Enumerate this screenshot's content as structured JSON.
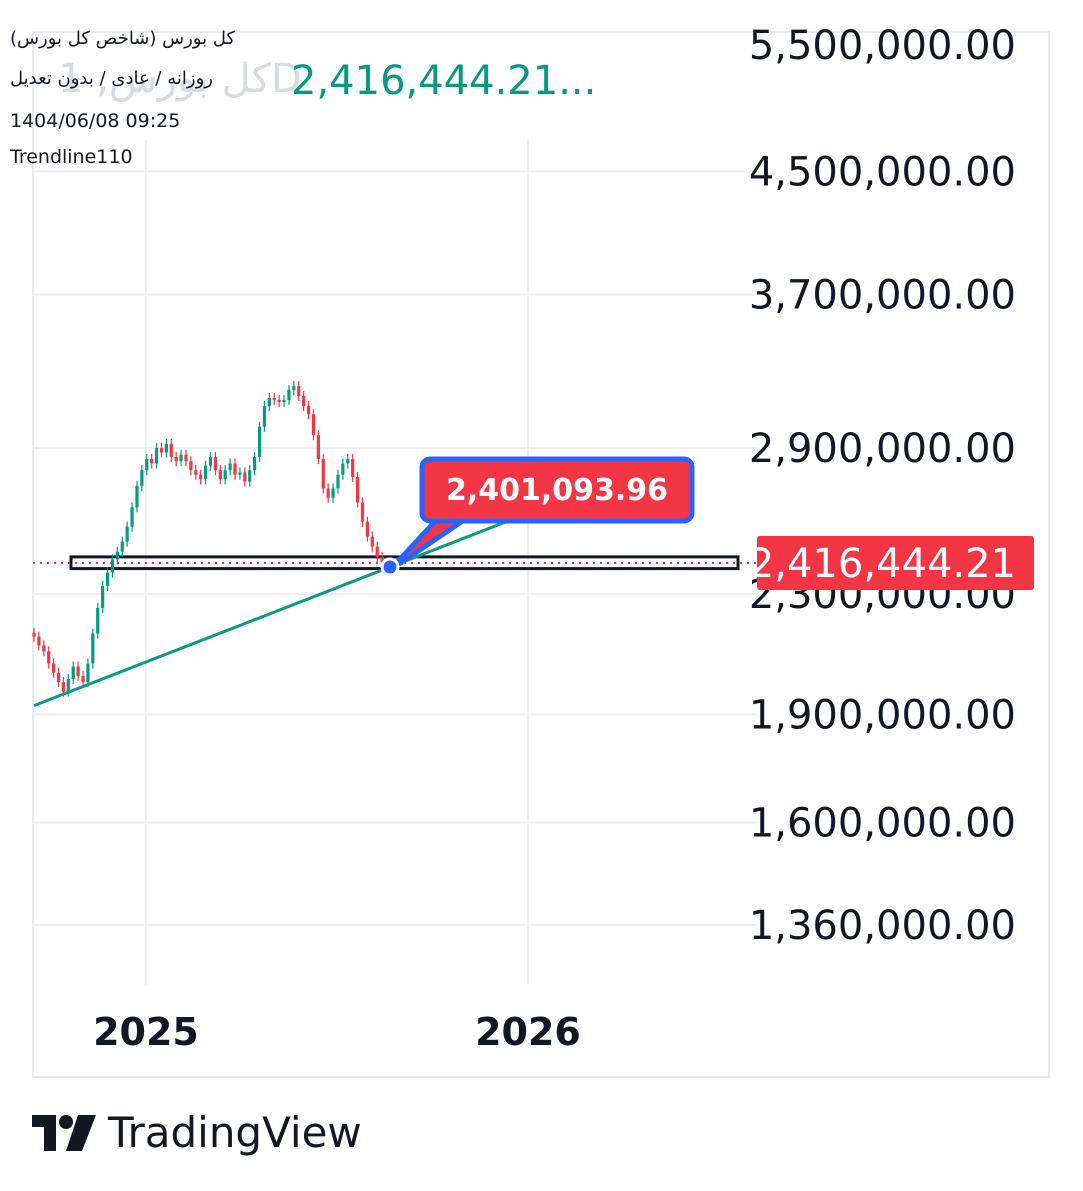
{
  "header": {
    "symbol": "کل بورس (شاخص کل بورس)",
    "interval": "روزانه / عادی / بدون تعدیل",
    "last_price": "2,416,444.21...",
    "datetime": "1404/06/08 09:25",
    "indicator": "Trendline110",
    "ghost_text": "کل بورس, 1D"
  },
  "brand": {
    "name": "TradingView",
    "logo_icon": "tradingview-logo-icon"
  },
  "colors": {
    "up": "#089981",
    "down": "#f23645",
    "trend": "#0f9a80",
    "callout_fill": "#f23645",
    "callout_border": "#2962ff",
    "grid": "#eef0f3"
  },
  "chart_data": {
    "type": "candlestick",
    "title": "",
    "xlabel": "",
    "ylabel": "",
    "y_scale": "log",
    "grid": true,
    "x_ticks": [
      "2025",
      "2026"
    ],
    "y_ticks": [
      5500000,
      4500000,
      3700000,
      2900000,
      2300000,
      1900000,
      1600000,
      1360000
    ],
    "y_tick_labels": [
      "5,500,000.00",
      "4,500,000.00",
      "3,700,000.00",
      "2,900,000.00",
      "2,300,000.00",
      "1,900,000.00",
      "1,600,000.00",
      "1,360,000.00"
    ],
    "last_price_value": 2416444.21,
    "last_price_label": "2,416,444.21",
    "callout_label": "2,401,093.96",
    "callout_value": 2401093.96,
    "series": [
      {
        "name": "",
        "values": [
          2150000,
          2120000,
          2100000,
          2060000,
          2030000,
          2000000,
          1970000,
          2010000,
          2050000,
          2020000,
          2000000,
          2060000,
          2160000,
          2250000,
          2330000,
          2380000,
          2430000,
          2460000,
          2500000,
          2560000,
          2640000,
          2730000,
          2800000,
          2850000,
          2830000,
          2900000,
          2880000,
          2920000,
          2860000,
          2840000,
          2870000,
          2840000,
          2800000,
          2780000,
          2760000,
          2820000,
          2860000,
          2800000,
          2760000,
          2800000,
          2830000,
          2780000,
          2790000,
          2750000,
          2800000,
          2860000,
          3000000,
          3100000,
          3140000,
          3130000,
          3120000,
          3130000,
          3180000,
          3200000,
          3150000,
          3100000,
          3060000,
          2960000,
          2850000,
          2720000,
          2680000,
          2720000,
          2780000,
          2830000,
          2850000,
          2770000,
          2660000,
          2580000,
          2520000,
          2480000,
          2440000,
          2420000,
          2416444.21
        ]
      }
    ],
    "trendline": {
      "label": "Trendline110",
      "points": [
        [
          "start",
          1970000
        ],
        [
          "callout",
          2401093.96
        ]
      ]
    },
    "highlight_box": {
      "low": 2395000,
      "high": 2440000
    }
  }
}
